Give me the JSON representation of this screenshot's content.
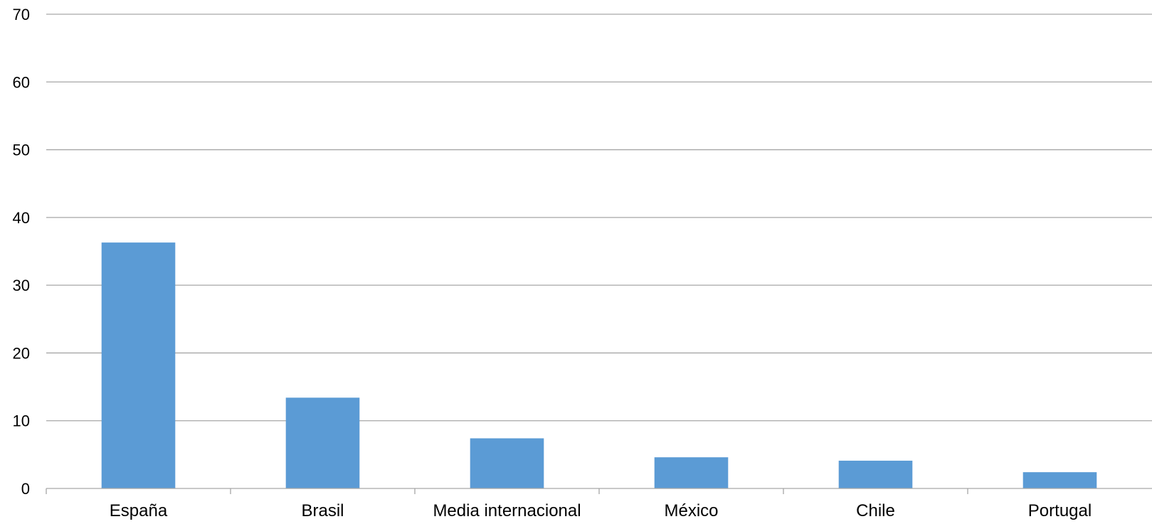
{
  "chart_data": {
    "type": "bar",
    "categories": [
      "España",
      "Brasil",
      "Media internacional",
      "México",
      "Chile",
      "Portugal"
    ],
    "values": [
      36.3,
      13.4,
      7.4,
      4.6,
      4.1,
      2.4
    ],
    "ylim": [
      0,
      70
    ],
    "yticks": [
      "0",
      "10",
      "20",
      "30",
      "40",
      "50",
      "60",
      "70"
    ],
    "grid": true,
    "legend": "none",
    "colors": {
      "bar": "#5B9BD5",
      "grid": "#A6A6A6",
      "axis": "#A6A6A6"
    }
  }
}
